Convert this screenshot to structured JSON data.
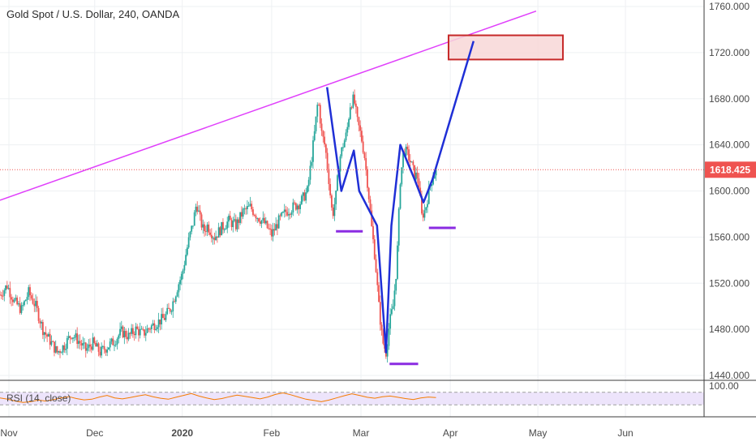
{
  "chart_data": {
    "type": "candlestick",
    "title": "Gold Spot / U.S. Dollar, 240, OANDA",
    "y_axis": {
      "side": "right",
      "ticks": [
        "1760.000",
        "1720.000",
        "1680.000",
        "1640.000",
        "1600.000",
        "1560.000",
        "1520.000",
        "1480.000",
        "1440.000"
      ],
      "ylim": [
        1440,
        1760
      ]
    },
    "x_axis": {
      "ticks": [
        {
          "label": "Nov",
          "bold": false
        },
        {
          "label": "Dec",
          "bold": false
        },
        {
          "label": "2020",
          "bold": true
        },
        {
          "label": "Feb",
          "bold": false
        },
        {
          "label": "Mar",
          "bold": false
        },
        {
          "label": "Apr",
          "bold": false
        },
        {
          "label": "May",
          "bold": false
        },
        {
          "label": "Jun",
          "bold": false
        }
      ]
    },
    "last_price": {
      "value": 1618.425,
      "label": "1618.425",
      "color": "#ef5350"
    },
    "colors": {
      "up": "#26a69a",
      "down": "#ef5350",
      "trendline": "#e040fb",
      "pattern": "#1f2fd6",
      "support": "#8a2be2",
      "target_border": "#c62828",
      "target_fill": "#f8d7d7"
    },
    "price_path": [
      [
        0.0,
        1510
      ],
      [
        0.2,
        1518
      ],
      [
        0.4,
        1504
      ],
      [
        0.6,
        1497
      ],
      [
        0.8,
        1512
      ],
      [
        1.0,
        1500
      ],
      [
        1.2,
        1480
      ],
      [
        1.4,
        1470
      ],
      [
        1.6,
        1460
      ],
      [
        1.8,
        1466
      ],
      [
        2.0,
        1476
      ],
      [
        2.2,
        1470
      ],
      [
        2.4,
        1462
      ],
      [
        2.6,
        1468
      ],
      [
        2.8,
        1460
      ],
      [
        3.0,
        1465
      ],
      [
        3.2,
        1470
      ],
      [
        3.4,
        1478
      ],
      [
        3.6,
        1474
      ],
      [
        3.8,
        1480
      ],
      [
        4.0,
        1476
      ],
      [
        4.2,
        1482
      ],
      [
        4.4,
        1486
      ],
      [
        4.6,
        1490
      ],
      [
        4.8,
        1500
      ],
      [
        5.0,
        1520
      ],
      [
        5.1,
        1528
      ],
      [
        5.2,
        1545
      ],
      [
        5.3,
        1560
      ],
      [
        5.4,
        1572
      ],
      [
        5.5,
        1590
      ],
      [
        5.6,
        1575
      ],
      [
        5.7,
        1565
      ],
      [
        5.8,
        1570
      ],
      [
        6.0,
        1560
      ],
      [
        6.2,
        1568
      ],
      [
        6.4,
        1574
      ],
      [
        6.6,
        1570
      ],
      [
        6.8,
        1582
      ],
      [
        7.0,
        1586
      ],
      [
        7.2,
        1578
      ],
      [
        7.4,
        1572
      ],
      [
        7.6,
        1562
      ],
      [
        7.8,
        1574
      ],
      [
        8.0,
        1582
      ],
      [
        8.2,
        1586
      ],
      [
        8.4,
        1590
      ],
      [
        8.6,
        1600
      ],
      [
        8.7,
        1624
      ],
      [
        8.8,
        1650
      ],
      [
        8.9,
        1680
      ],
      [
        9.0,
        1650
      ],
      [
        9.1,
        1638
      ],
      [
        9.2,
        1610
      ],
      [
        9.3,
        1578
      ],
      [
        9.4,
        1596
      ],
      [
        9.5,
        1628
      ],
      [
        9.6,
        1640
      ],
      [
        9.7,
        1650
      ],
      [
        9.8,
        1675
      ],
      [
        9.9,
        1680
      ],
      [
        10.0,
        1660
      ],
      [
        10.1,
        1648
      ],
      [
        10.2,
        1630
      ],
      [
        10.3,
        1602
      ],
      [
        10.4,
        1568
      ],
      [
        10.5,
        1540
      ],
      [
        10.6,
        1500
      ],
      [
        10.7,
        1470
      ],
      [
        10.8,
        1460
      ],
      [
        10.9,
        1486
      ],
      [
        11.0,
        1500
      ],
      [
        11.1,
        1535
      ],
      [
        11.2,
        1610
      ],
      [
        11.3,
        1636
      ],
      [
        11.4,
        1632
      ],
      [
        11.5,
        1624
      ],
      [
        11.6,
        1614
      ],
      [
        11.7,
        1612
      ],
      [
        11.8,
        1578
      ],
      [
        11.9,
        1584
      ],
      [
        12.0,
        1600
      ],
      [
        12.1,
        1612
      ],
      [
        12.2,
        1618
      ]
    ],
    "x_ticks_time": [
      0.25,
      2.65,
      5.1,
      7.6,
      10.1,
      12.6,
      15.05,
      17.5
    ],
    "pattern_zigzag": [
      [
        9.15,
        1690
      ],
      [
        9.55,
        1600
      ],
      [
        9.9,
        1635
      ],
      [
        10.05,
        1600
      ],
      [
        10.55,
        1570
      ],
      [
        10.8,
        1460
      ],
      [
        10.95,
        1570
      ],
      [
        11.2,
        1640
      ],
      [
        11.6,
        1610
      ],
      [
        11.85,
        1590
      ],
      [
        12.1,
        1610
      ],
      [
        13.25,
        1730
      ]
    ],
    "trendline": {
      "from": [
        0.0,
        1592
      ],
      "to": [
        15.0,
        1756
      ]
    },
    "support_levels": [
      {
        "t_start": 9.4,
        "t_end": 10.15,
        "y": 1565
      },
      {
        "t_start": 10.9,
        "t_end": 11.7,
        "y": 1450
      },
      {
        "t_start": 12.0,
        "t_end": 12.75,
        "y": 1568
      }
    ],
    "target_box": {
      "t_start": 12.55,
      "t_end": 15.75,
      "y_top": 1735,
      "y_bottom": 1714
    },
    "rsi": {
      "label": "RSI (14, close)",
      "levels": [
        70,
        30
      ],
      "values": [
        52,
        48,
        42,
        38,
        40,
        45,
        42,
        47,
        52,
        56,
        50,
        46,
        48,
        55,
        60,
        52,
        49,
        53,
        58,
        62,
        56,
        51,
        48,
        54,
        60,
        66,
        58,
        52,
        47,
        50,
        56,
        61,
        57,
        53,
        49,
        55,
        63,
        68,
        62,
        55,
        48,
        44,
        40,
        45,
        52,
        59,
        65,
        60,
        54,
        51,
        56,
        58,
        54,
        50,
        47,
        52,
        55,
        53
      ]
    }
  }
}
